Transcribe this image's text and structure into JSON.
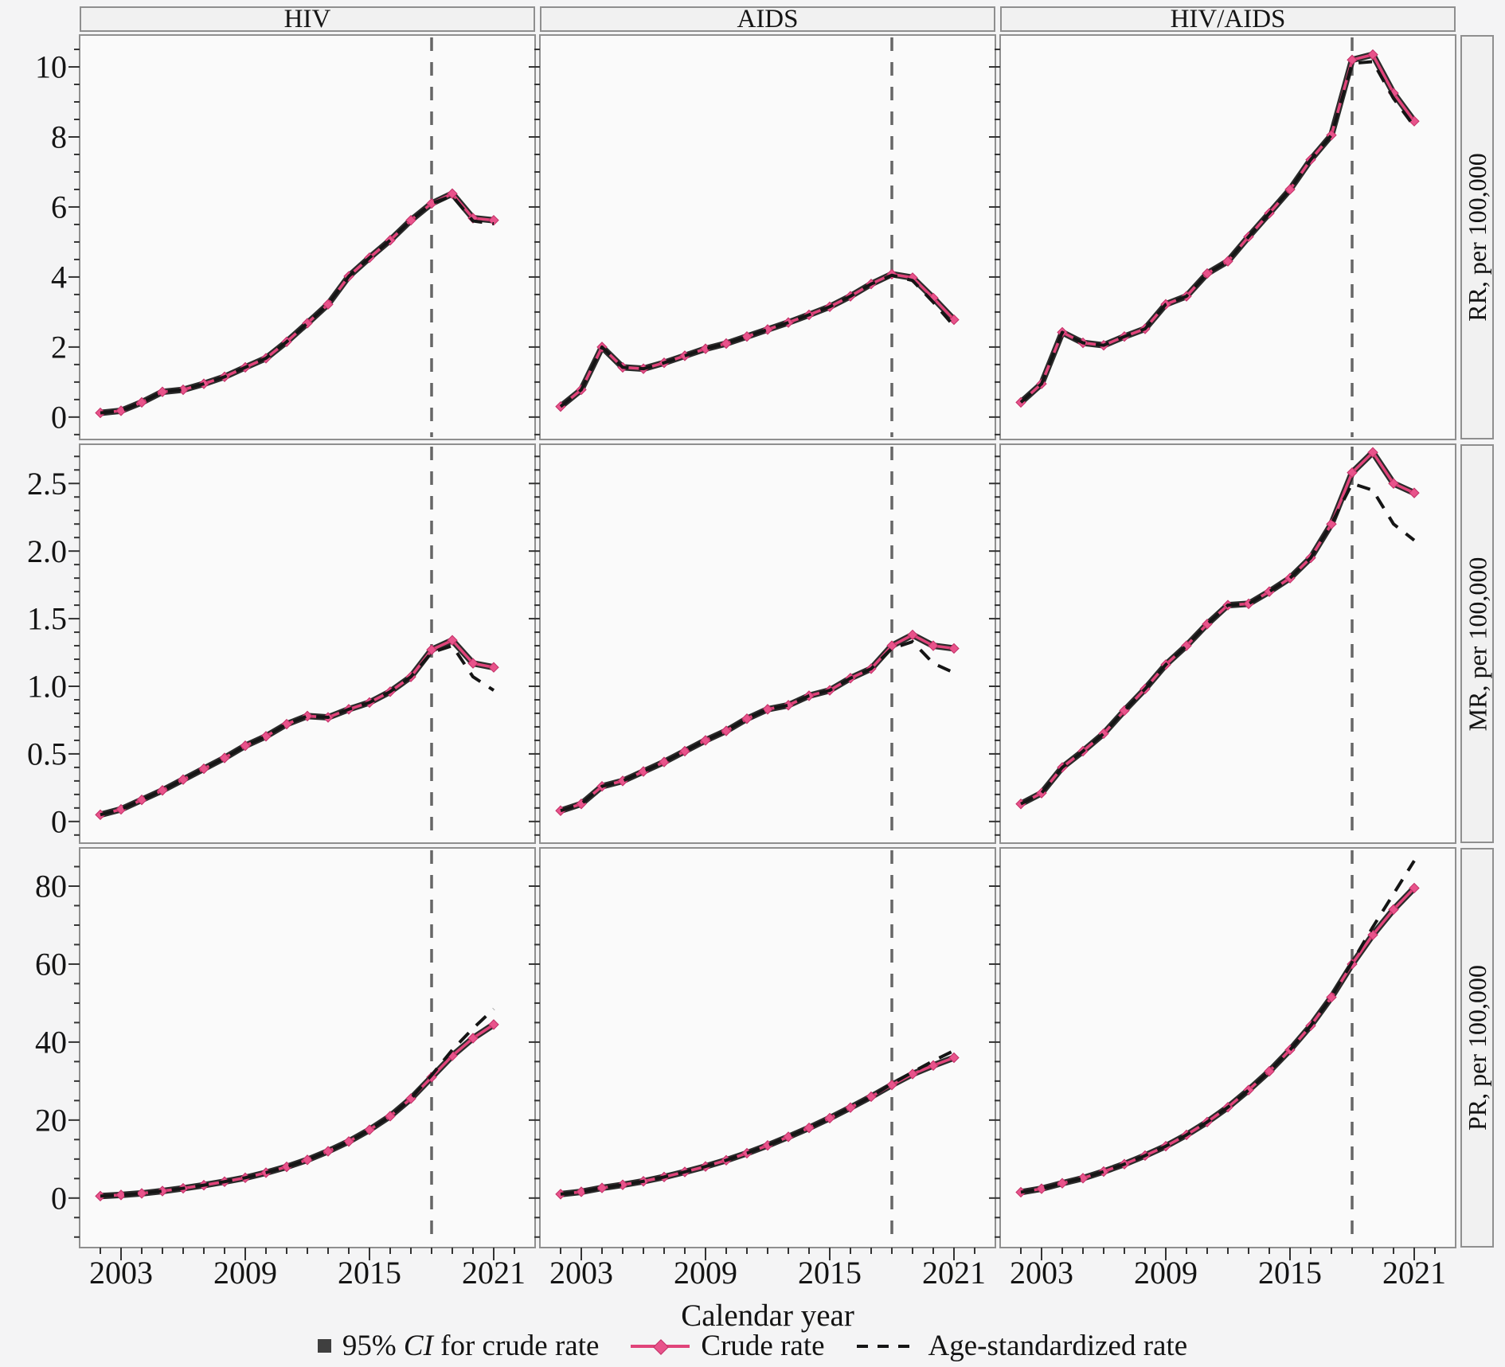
{
  "figure": {
    "xlabel": "Calendar year",
    "legend": {
      "ci_prefix": "95% ",
      "ci_italic": "CI",
      "ci_suffix": " for crude rate",
      "crude_label": "Crude rate",
      "age_label": "Age-standardized rate"
    }
  },
  "chart_data": {
    "type": "line",
    "title": "",
    "xlabel": "Calendar year",
    "columns": [
      "HIV",
      "AIDS",
      "HIV/AIDS"
    ],
    "x": [
      2002,
      2003,
      2004,
      2005,
      2006,
      2007,
      2008,
      2009,
      2010,
      2011,
      2012,
      2013,
      2014,
      2015,
      2016,
      2017,
      2018,
      2019,
      2020,
      2021
    ],
    "xlim": [
      2001,
      2023
    ],
    "x_ticks": [
      2003,
      2009,
      2015,
      2021
    ],
    "x_tick_labels": [
      "2003",
      "2009",
      "2015",
      "2021"
    ],
    "reference_year": 2018,
    "grid": "off",
    "legend_position": "bottom",
    "colors": {
      "crude": "#e0447a",
      "crude_marker": "#e8538b",
      "crude_marker_edge": "#c13066",
      "ci_band": "#2b2b2b",
      "age_standardized": "#151515",
      "reference_line": "#666666",
      "panel_fill": "#fafafa",
      "panel_border": "#8f8f8f",
      "tick": "#333333"
    },
    "rows": [
      {
        "label": "RR, per 100,000",
        "ylim": [
          -0.64,
          10.91
        ],
        "yticks": [
          0,
          2,
          4,
          6,
          8,
          10
        ],
        "ylabels": [
          "0",
          "2",
          "4",
          "6",
          "8",
          "10"
        ],
        "minor_step": 0.5
      },
      {
        "label": "MR, per 100,000",
        "ylim": [
          -0.16,
          2.79
        ],
        "yticks": [
          0,
          0.5,
          1.0,
          1.5,
          2.0,
          2.5
        ],
        "ylabels": [
          "0",
          "0.5",
          "1.0",
          "1.5",
          "2.0",
          "2.5"
        ],
        "minor_step": 0.1
      },
      {
        "label": "PR, per 100,000",
        "ylim": [
          -12.7,
          89.8
        ],
        "yticks": [
          0,
          20,
          40,
          60,
          80
        ],
        "ylabels": [
          "0",
          "20",
          "40",
          "60",
          "80"
        ],
        "minor_step": 5
      }
    ],
    "series_names": [
      "95% CI for crude rate",
      "Crude rate",
      "Age-standardized rate"
    ],
    "panels": [
      {
        "row": 0,
        "col": 0,
        "facet": "RR HIV",
        "crude": [
          0.12,
          0.18,
          0.42,
          0.72,
          0.78,
          0.95,
          1.15,
          1.42,
          1.68,
          2.15,
          2.68,
          3.22,
          4.02,
          4.55,
          5.05,
          5.62,
          6.1,
          6.38,
          5.68,
          5.62
        ],
        "age": [
          0.12,
          0.18,
          0.42,
          0.72,
          0.78,
          0.95,
          1.15,
          1.42,
          1.68,
          2.15,
          2.68,
          3.22,
          4.02,
          4.55,
          5.05,
          5.62,
          6.1,
          6.32,
          5.6,
          5.52
        ]
      },
      {
        "row": 0,
        "col": 1,
        "facet": "RR AIDS",
        "crude": [
          0.3,
          0.78,
          2.0,
          1.42,
          1.38,
          1.55,
          1.75,
          1.95,
          2.1,
          2.3,
          2.5,
          2.7,
          2.92,
          3.15,
          3.45,
          3.8,
          4.08,
          3.98,
          3.4,
          2.78
        ],
        "age": [
          0.3,
          0.78,
          2.0,
          1.42,
          1.38,
          1.55,
          1.75,
          1.95,
          2.1,
          2.3,
          2.5,
          2.7,
          2.92,
          3.15,
          3.45,
          3.8,
          4.05,
          3.9,
          3.28,
          2.6
        ]
      },
      {
        "row": 0,
        "col": 2,
        "facet": "RR HIV/AIDS",
        "crude": [
          0.42,
          0.95,
          2.42,
          2.12,
          2.05,
          2.3,
          2.52,
          3.22,
          3.45,
          4.1,
          4.45,
          5.15,
          5.82,
          6.5,
          7.35,
          8.05,
          10.2,
          10.35,
          9.25,
          8.45
        ],
        "age": [
          0.42,
          0.95,
          2.42,
          2.12,
          2.05,
          2.3,
          2.52,
          3.22,
          3.45,
          4.1,
          4.45,
          5.15,
          5.82,
          6.5,
          7.35,
          8.05,
          10.1,
          10.15,
          9.1,
          8.3
        ]
      },
      {
        "row": 1,
        "col": 0,
        "facet": "MR HIV",
        "crude": [
          0.05,
          0.09,
          0.16,
          0.23,
          0.31,
          0.39,
          0.47,
          0.56,
          0.63,
          0.72,
          0.78,
          0.77,
          0.83,
          0.88,
          0.96,
          1.07,
          1.27,
          1.34,
          1.17,
          1.14
        ],
        "age": [
          0.05,
          0.09,
          0.16,
          0.23,
          0.31,
          0.39,
          0.47,
          0.56,
          0.63,
          0.72,
          0.78,
          0.77,
          0.83,
          0.88,
          0.96,
          1.07,
          1.25,
          1.3,
          1.07,
          0.97
        ]
      },
      {
        "row": 1,
        "col": 1,
        "facet": "MR AIDS",
        "crude": [
          0.08,
          0.13,
          0.26,
          0.3,
          0.37,
          0.44,
          0.52,
          0.6,
          0.67,
          0.76,
          0.83,
          0.86,
          0.93,
          0.97,
          1.06,
          1.13,
          1.3,
          1.38,
          1.3,
          1.28
        ],
        "age": [
          0.08,
          0.13,
          0.26,
          0.3,
          0.37,
          0.44,
          0.52,
          0.6,
          0.67,
          0.76,
          0.83,
          0.86,
          0.93,
          0.97,
          1.06,
          1.13,
          1.28,
          1.33,
          1.17,
          1.1
        ]
      },
      {
        "row": 1,
        "col": 2,
        "facet": "MR HIV/AIDS",
        "crude": [
          0.13,
          0.21,
          0.4,
          0.52,
          0.65,
          0.82,
          0.98,
          1.16,
          1.3,
          1.46,
          1.6,
          1.61,
          1.7,
          1.8,
          1.95,
          2.2,
          2.58,
          2.73,
          2.5,
          2.43
        ],
        "age": [
          0.13,
          0.21,
          0.4,
          0.52,
          0.65,
          0.82,
          0.98,
          1.16,
          1.3,
          1.46,
          1.6,
          1.61,
          1.7,
          1.8,
          1.95,
          2.2,
          2.5,
          2.45,
          2.2,
          2.08
        ]
      },
      {
        "row": 2,
        "col": 0,
        "facet": "PR HIV",
        "crude": [
          0.5,
          0.8,
          1.2,
          1.8,
          2.5,
          3.3,
          4.2,
          5.2,
          6.5,
          8.0,
          9.8,
          12.0,
          14.5,
          17.5,
          21.0,
          25.5,
          31.0,
          36.5,
          41.0,
          44.5
        ],
        "age": [
          0.5,
          0.8,
          1.2,
          1.8,
          2.5,
          3.3,
          4.2,
          5.2,
          6.5,
          8.0,
          9.8,
          12.0,
          14.5,
          17.5,
          21.0,
          25.5,
          31.5,
          38.0,
          43.5,
          48.5
        ]
      },
      {
        "row": 2,
        "col": 1,
        "facet": "PR AIDS",
        "crude": [
          1.0,
          1.6,
          2.6,
          3.4,
          4.3,
          5.4,
          6.7,
          8.1,
          9.7,
          11.5,
          13.5,
          15.7,
          18.0,
          20.5,
          23.2,
          26.0,
          29.0,
          31.8,
          34.0,
          36.0
        ],
        "age": [
          1.0,
          1.6,
          2.6,
          3.4,
          4.3,
          5.4,
          6.7,
          8.1,
          9.7,
          11.5,
          13.5,
          15.7,
          18.0,
          20.5,
          23.2,
          26.0,
          29.3,
          32.3,
          35.2,
          37.8
        ]
      },
      {
        "row": 2,
        "col": 2,
        "facet": "PR HIV/AIDS",
        "crude": [
          1.5,
          2.4,
          3.8,
          5.1,
          6.8,
          8.7,
          10.9,
          13.3,
          16.2,
          19.5,
          23.3,
          27.7,
          32.5,
          38.0,
          44.2,
          51.5,
          60.0,
          67.5,
          74.0,
          79.5
        ],
        "age": [
          1.5,
          2.4,
          3.8,
          5.1,
          6.8,
          8.7,
          10.9,
          13.3,
          16.2,
          19.5,
          23.3,
          27.7,
          32.5,
          38.0,
          44.2,
          51.5,
          60.5,
          69.5,
          78.0,
          86.5
        ]
      }
    ]
  }
}
